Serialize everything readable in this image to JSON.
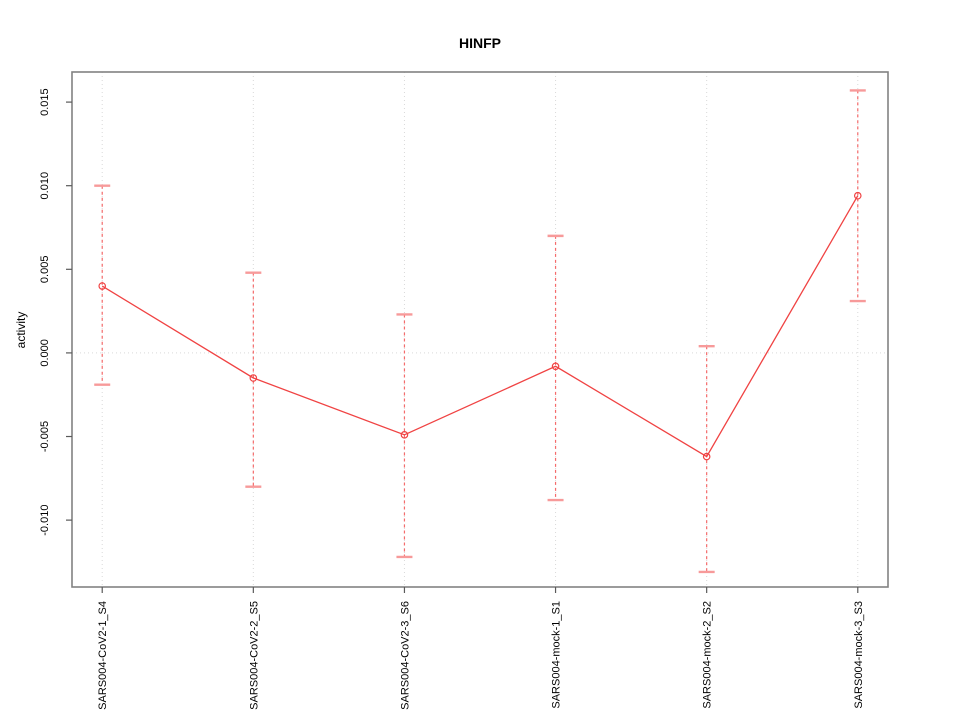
{
  "chart_data": {
    "type": "line",
    "subtype": "means-with-error-bars",
    "title": "HINFP",
    "xlabel": "",
    "ylabel": "activity",
    "categories": [
      "SARS004-CoV2-1_S4",
      "SARS004-CoV2-2_S5",
      "SARS004-CoV2-3_S6",
      "SARS004-mock-1_S1",
      "SARS004-mock-2_S2",
      "SARS004-mock-3_S3"
    ],
    "series": [
      {
        "name": "activity",
        "means": [
          0.004,
          -0.0015,
          -0.0049,
          -0.0008,
          -0.0062,
          0.0094
        ],
        "upper": [
          0.01,
          0.0048,
          0.0023,
          0.007,
          0.0004,
          0.0157
        ],
        "lower": [
          -0.0019,
          -0.008,
          -0.0122,
          -0.0088,
          -0.0131,
          0.0031
        ]
      }
    ],
    "yticks": [
      0.015,
      0.01,
      0.005,
      0.0,
      -0.005,
      -0.01
    ],
    "ytick_labels": [
      "0.015",
      "0.010",
      "0.005",
      "0.000",
      "-0.005",
      "-0.010"
    ],
    "ylim": [
      -0.014,
      0.0168
    ],
    "xlim": [
      0.8,
      6.2
    ],
    "grid": {
      "vertical_per_category": true,
      "horizontal_at_zero": true,
      "style": "dotted"
    },
    "legend": "none",
    "colors": {
      "line": "#f04343",
      "error_bar": "#f56b6b",
      "error_cap": "#f79a9a",
      "marker_stroke": "#f04343",
      "grid": "#d9d9d9",
      "box": "#828282",
      "tick": "#5a5a5a",
      "text": "#000000",
      "background": "#ffffff"
    }
  }
}
